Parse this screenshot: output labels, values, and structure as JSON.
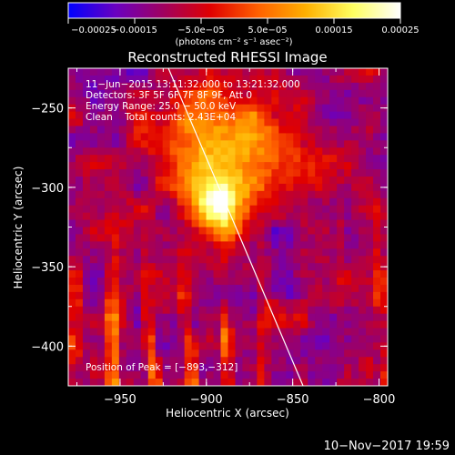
{
  "chart_data": {
    "type": "heatmap",
    "title": "Reconstructed RHESSI Image",
    "xlabel": "Heliocentric X (arcsec)",
    "ylabel": "Heliocentric Y (arcsec)",
    "xlim": [
      -980,
      -795
    ],
    "ylim": [
      -425,
      -225
    ],
    "xticks": [
      {
        "value": -950,
        "label": "−950"
      },
      {
        "value": -900,
        "label": "−900"
      },
      {
        "value": -850,
        "label": "−850"
      },
      {
        "value": -800,
        "label": "−800"
      }
    ],
    "yticks": [
      {
        "value": -250,
        "label": "−250"
      },
      {
        "value": -300,
        "label": "−300"
      },
      {
        "value": -350,
        "label": "−350"
      },
      {
        "value": -400,
        "label": "−400"
      }
    ],
    "colorbar": {
      "range": [
        -0.00025,
        0.00025
      ],
      "ticks": [
        {
          "value": -0.00025,
          "label": "−0.00025"
        },
        {
          "value": -0.00015,
          "label": "−0.00015"
        },
        {
          "value": -5e-05,
          "label": "−5.0e−05"
        },
        {
          "value": 5e-05,
          "label": "5.0e−05"
        },
        {
          "value": 0.00015,
          "label": "0.00015"
        },
        {
          "value": 0.00025,
          "label": "0.00025"
        }
      ],
      "unit_label": "(photons cm⁻² s⁻¹ asec⁻²)",
      "colormap": [
        "#0000ff",
        "#6a00c0",
        "#a00060",
        "#e00000",
        "#ff6000",
        "#ffb000",
        "#ffff60",
        "#ffffff"
      ]
    },
    "peak": {
      "x": -893,
      "y": -312
    },
    "annotations": [
      "11−Jun−2015 13:11:32.000 to 13:21:32.000",
      "Detectors: 3F 5F 6F 7F 8F 9F, Att 0",
      "Energy Range: 25.0 − 50.0 keV",
      "Clean    Total counts: 2.43E+04"
    ],
    "peak_label": "Position of Peak = [−893,−312]",
    "limb_line": [
      {
        "x": -922,
        "y": -225
      },
      {
        "x": -844,
        "y": -425
      }
    ]
  },
  "footer": {
    "timestamp": "10−Nov−2017 19:59"
  }
}
